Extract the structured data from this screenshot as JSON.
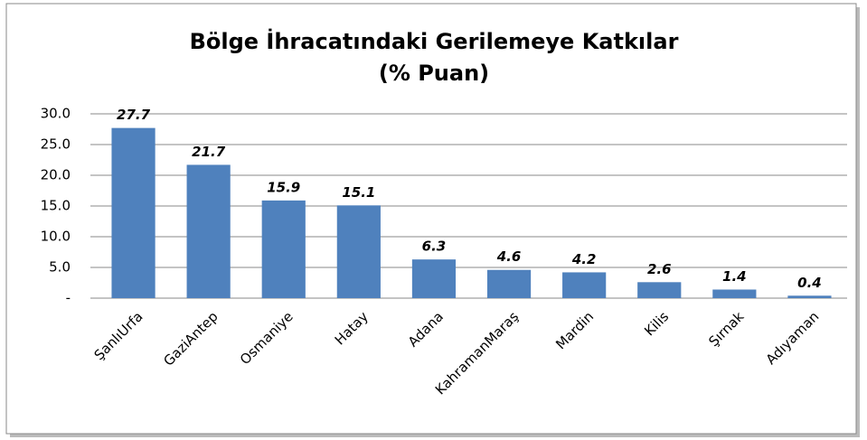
{
  "chart_data": {
    "type": "bar",
    "title": "Bölge İhracatındaki Gerilemeye Katkılar",
    "subtitle": "(% Puan)",
    "categories": [
      "ŞanlıUrfa",
      "GaziAntep",
      "Osmaniye",
      "Hatay",
      "Adana",
      "KahramanMaraş",
      "Mardin",
      "Kilis",
      "Şırnak",
      "Adıyaman"
    ],
    "values": [
      27.7,
      21.7,
      15.9,
      15.1,
      6.3,
      4.6,
      4.2,
      2.6,
      1.4,
      0.4
    ],
    "color": "#4f81bd",
    "ylim": [
      0,
      30
    ],
    "yticks": [
      {
        "value": 0,
        "label": "-"
      },
      {
        "value": 5,
        "label": "5.0"
      },
      {
        "value": 10,
        "label": "10.0"
      },
      {
        "value": 15,
        "label": "15.0"
      },
      {
        "value": 20,
        "label": "20.0"
      },
      {
        "value": 25,
        "label": "25.0"
      },
      {
        "value": 30,
        "label": "30.0"
      }
    ],
    "grid": true
  }
}
